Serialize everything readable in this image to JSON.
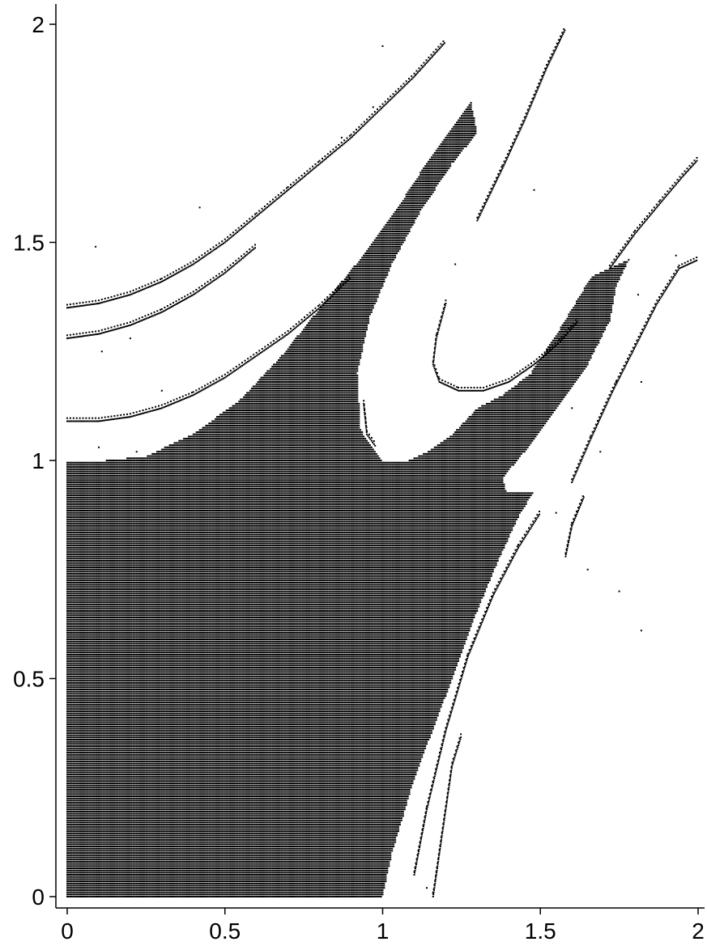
{
  "chart_data": {
    "type": "scatter",
    "title": "",
    "xlabel": "",
    "ylabel": "",
    "xlim": [
      0,
      2
    ],
    "ylim": [
      0,
      2
    ],
    "x_ticks": [
      0,
      0.5,
      1,
      1.5,
      2
    ],
    "x_tick_labels": [
      "0",
      "0.5",
      "1",
      "1.5",
      "2"
    ],
    "y_ticks": [
      0,
      0.5,
      1,
      1.5,
      2
    ],
    "y_tick_labels": [
      "0",
      "0.5",
      "1",
      "1.5",
      "2"
    ],
    "grid": false,
    "legend": "none",
    "marker_color": "#000000",
    "grid_step": 0.005,
    "series": [
      {
        "kind": "filled-region",
        "boundary_polygon": [
          [
            0,
            0
          ],
          [
            1.0,
            0
          ],
          [
            1.03,
            0.1
          ],
          [
            1.1,
            0.27
          ],
          [
            1.2,
            0.46
          ],
          [
            1.28,
            0.62
          ],
          [
            1.36,
            0.76
          ],
          [
            1.43,
            0.87
          ],
          [
            1.48,
            0.93
          ],
          [
            1.39,
            0.93
          ],
          [
            1.38,
            0.96
          ],
          [
            1.45,
            1.02
          ],
          [
            1.55,
            1.12
          ],
          [
            1.65,
            1.22
          ],
          [
            1.72,
            1.32
          ],
          [
            1.74,
            1.4
          ],
          [
            1.78,
            1.46
          ],
          [
            1.66,
            1.42
          ],
          [
            1.56,
            1.3
          ],
          [
            1.47,
            1.2
          ],
          [
            1.38,
            1.15
          ],
          [
            1.3,
            1.12
          ],
          [
            1.22,
            1.06
          ],
          [
            1.14,
            1.02
          ],
          [
            1.08,
            1.0
          ],
          [
            1.0,
            1.0
          ],
          [
            0.93,
            1.07
          ],
          [
            0.92,
            1.2
          ],
          [
            0.96,
            1.33
          ],
          [
            1.03,
            1.45
          ],
          [
            1.12,
            1.57
          ],
          [
            1.22,
            1.68
          ],
          [
            1.3,
            1.75
          ],
          [
            1.28,
            1.82
          ],
          [
            1.22,
            1.76
          ],
          [
            1.12,
            1.66
          ],
          [
            1.03,
            1.56
          ],
          [
            0.95,
            1.48
          ],
          [
            0.87,
            1.41
          ],
          [
            0.78,
            1.33
          ],
          [
            0.68,
            1.24
          ],
          [
            0.55,
            1.14
          ],
          [
            0.4,
            1.06
          ],
          [
            0.25,
            1.01
          ],
          [
            0.12,
            1.0
          ],
          [
            0,
            1.0
          ]
        ]
      },
      {
        "kind": "curve-band",
        "points": [
          [
            0.0,
            1.35
          ],
          [
            0.1,
            1.36
          ],
          [
            0.2,
            1.38
          ],
          [
            0.3,
            1.41
          ],
          [
            0.4,
            1.45
          ],
          [
            0.5,
            1.5
          ],
          [
            0.6,
            1.56
          ],
          [
            0.7,
            1.62
          ],
          [
            0.8,
            1.68
          ],
          [
            0.9,
            1.74
          ],
          [
            1.0,
            1.81
          ],
          [
            1.1,
            1.88
          ],
          [
            1.2,
            1.96
          ]
        ]
      },
      {
        "kind": "curve-band",
        "points": [
          [
            0.0,
            1.28
          ],
          [
            0.1,
            1.29
          ],
          [
            0.2,
            1.31
          ],
          [
            0.3,
            1.34
          ],
          [
            0.4,
            1.38
          ],
          [
            0.5,
            1.43
          ],
          [
            0.6,
            1.49
          ]
        ]
      },
      {
        "kind": "curve-band",
        "points": [
          [
            0.0,
            1.09
          ],
          [
            0.1,
            1.09
          ],
          [
            0.2,
            1.1
          ],
          [
            0.3,
            1.12
          ],
          [
            0.4,
            1.15
          ],
          [
            0.5,
            1.19
          ],
          [
            0.6,
            1.24
          ],
          [
            0.7,
            1.29
          ],
          [
            0.8,
            1.35
          ],
          [
            0.9,
            1.42
          ]
        ]
      },
      {
        "kind": "curve-band",
        "points": [
          [
            1.2,
            1.36
          ],
          [
            1.17,
            1.28
          ],
          [
            1.16,
            1.22
          ],
          [
            1.18,
            1.18
          ],
          [
            1.24,
            1.16
          ],
          [
            1.32,
            1.16
          ],
          [
            1.4,
            1.18
          ],
          [
            1.48,
            1.22
          ],
          [
            1.56,
            1.27
          ],
          [
            1.62,
            1.32
          ]
        ]
      },
      {
        "kind": "curve-band",
        "points": [
          [
            0.94,
            1.13
          ],
          [
            0.95,
            1.06
          ],
          [
            0.98,
            1.03
          ]
        ]
      },
      {
        "kind": "curve-band",
        "points": [
          [
            1.3,
            1.55
          ],
          [
            1.38,
            1.67
          ],
          [
            1.45,
            1.78
          ],
          [
            1.52,
            1.9
          ],
          [
            1.58,
            1.99
          ]
        ]
      },
      {
        "kind": "curve-band",
        "points": [
          [
            1.72,
            1.44
          ],
          [
            1.8,
            1.52
          ],
          [
            1.88,
            1.59
          ],
          [
            1.95,
            1.65
          ],
          [
            2.0,
            1.69
          ]
        ]
      },
      {
        "kind": "curve-band",
        "points": [
          [
            1.6,
            0.95
          ],
          [
            1.66,
            1.05
          ],
          [
            1.73,
            1.16
          ],
          [
            1.8,
            1.26
          ],
          [
            1.87,
            1.36
          ],
          [
            1.94,
            1.44
          ],
          [
            2.0,
            1.46
          ]
        ]
      },
      {
        "kind": "curve-band",
        "points": [
          [
            1.1,
            0.05
          ],
          [
            1.14,
            0.2
          ],
          [
            1.2,
            0.38
          ],
          [
            1.27,
            0.55
          ],
          [
            1.35,
            0.69
          ],
          [
            1.43,
            0.8
          ],
          [
            1.5,
            0.88
          ]
        ]
      },
      {
        "kind": "curve-band",
        "points": [
          [
            1.16,
            0.0
          ],
          [
            1.18,
            0.1
          ],
          [
            1.2,
            0.2
          ],
          [
            1.22,
            0.3
          ],
          [
            1.25,
            0.37
          ]
        ]
      },
      {
        "kind": "curve-band",
        "points": [
          [
            1.58,
            0.78
          ],
          [
            1.6,
            0.85
          ],
          [
            1.64,
            0.92
          ]
        ]
      }
    ],
    "isolated_points": [
      [
        0.09,
        1.49
      ],
      [
        0.42,
        1.58
      ],
      [
        0.2,
        1.28
      ],
      [
        0.11,
        1.25
      ],
      [
        0.1,
        1.03
      ],
      [
        0.22,
        1.02
      ],
      [
        0.3,
        1.16
      ],
      [
        1.0,
        1.95
      ],
      [
        0.87,
        1.74
      ],
      [
        0.97,
        1.81
      ],
      [
        1.23,
        1.45
      ],
      [
        1.48,
        1.62
      ],
      [
        1.63,
        1.32
      ],
      [
        1.93,
        1.47
      ],
      [
        1.6,
        1.12
      ],
      [
        1.74,
        1.18
      ],
      [
        1.82,
        1.18
      ],
      [
        1.69,
        1.02
      ],
      [
        1.81,
        1.38
      ],
      [
        1.55,
        0.88
      ],
      [
        1.65,
        0.75
      ],
      [
        1.75,
        0.7
      ],
      [
        1.82,
        0.61
      ],
      [
        1.14,
        0.02
      ],
      [
        1.16,
        0.01
      ]
    ]
  }
}
